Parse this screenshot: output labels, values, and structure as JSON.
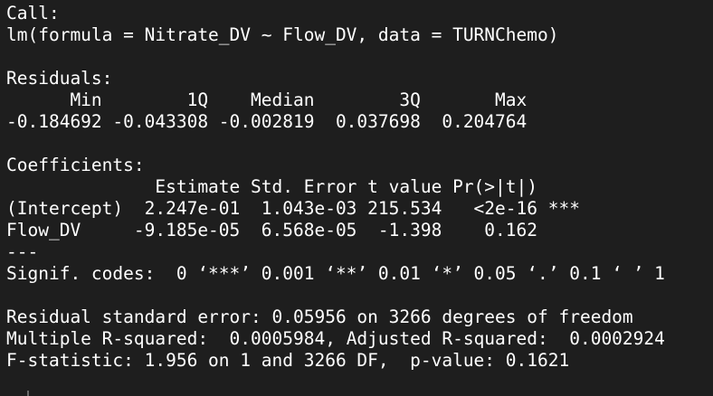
{
  "call": {
    "header": "Call:",
    "formula": "lm(formula = Nitrate_DV ~ Flow_DV, data = TURNChemo)"
  },
  "residuals": {
    "header": "Residuals:",
    "labels_line": "      Min        1Q    Median        3Q       Max ",
    "values_line": "-0.184692 -0.043308 -0.002819  0.037698  0.204764 "
  },
  "coefficients": {
    "header": "Coefficients:",
    "column_header": "              Estimate Std. Error t value Pr(>|t|)    ",
    "rows": [
      "(Intercept)  2.247e-01  1.043e-03 215.534   <2e-16 ***",
      "Flow_DV     -9.185e-05  6.568e-05  -1.398    0.162    "
    ],
    "separator": "---",
    "signif": "Signif. codes:  0 ‘***’ 0.001 ‘**’ 0.01 ‘*’ 0.05 ‘.’ 0.1 ‘ ’ 1"
  },
  "summary": {
    "rse": "Residual standard error: 0.05956 on 3266 degrees of freedom",
    "r_squared": "Multiple R-squared:  0.0005984,\tAdjusted R-squared:  0.0002924 ",
    "f_statistic": "F-statistic: 1.956 on 1 and 3266 DF,  p-value: 0.1621"
  }
}
